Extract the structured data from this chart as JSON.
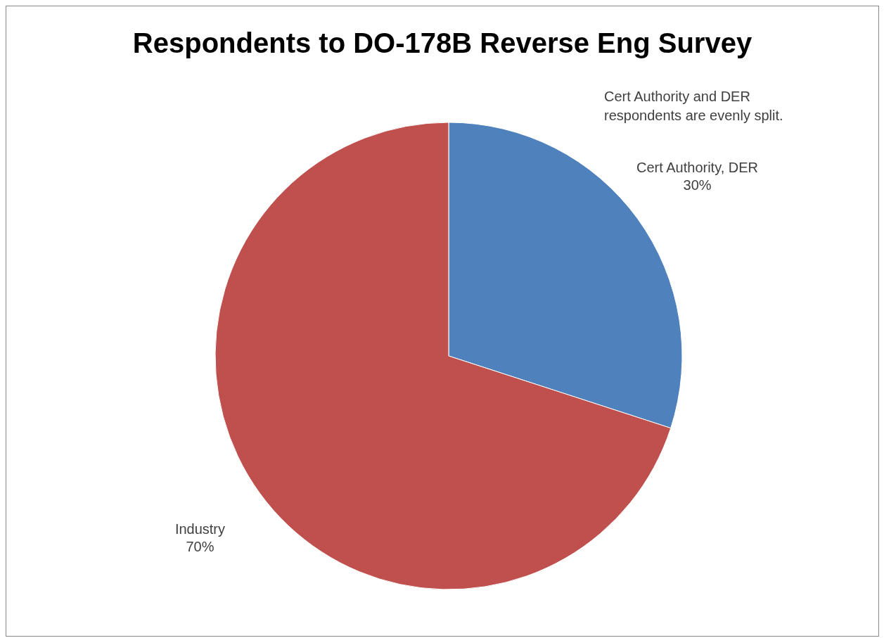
{
  "chart_data": {
    "type": "pie",
    "title": "Respondents to DO-178B Reverse Eng Survey",
    "categories": [
      "Cert Authority, DER",
      "Industry"
    ],
    "values": [
      30,
      70
    ],
    "colors": [
      "#4f81bd",
      "#c0504d"
    ],
    "value_labels": [
      "30%",
      "70%"
    ],
    "annotations": [
      "Cert Authority and DER respondents are evenly split."
    ]
  }
}
